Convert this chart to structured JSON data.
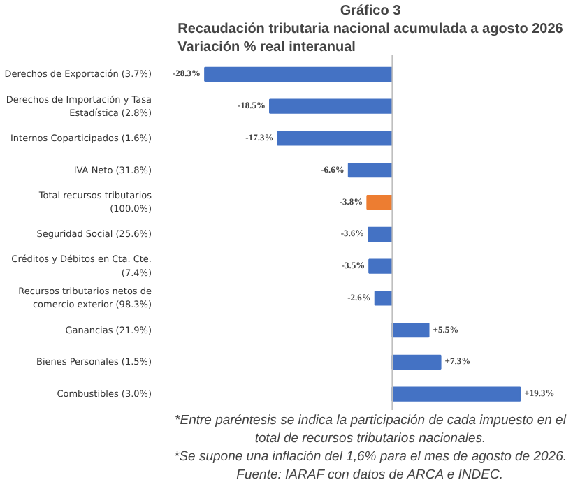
{
  "chart_data": {
    "type": "bar",
    "orientation": "horizontal",
    "title": "Gráfico 3",
    "subtitle": "Recaudación tributaria nacional acumulada a agosto 2026\nVariación % real interanual",
    "categories": [
      "Derechos de Exportación (3.7%)",
      "Derechos de Importación y Tasa Estadística (2.8%)",
      "Internos Coparticipados (1.6%)",
      "IVA Neto (31.8%)",
      "Total recursos tributarios (100.0%)",
      "Seguridad Social (25.6%)",
      "Créditos y Débitos en Cta. Cte. (7.4%)",
      "Recursos tributarios netos de comercio exterior (98.3%)",
      "Ganancias (21.9%)",
      "Bienes Personales (1.5%)",
      "Combustibles (3.0%)"
    ],
    "values": [
      -28.3,
      -18.5,
      -17.3,
      -6.6,
      -3.8,
      -3.6,
      -3.5,
      -2.6,
      5.5,
      7.3,
      19.3
    ],
    "colors": [
      "#4472c4",
      "#4472c4",
      "#4472c4",
      "#4472c4",
      "#ed7d31",
      "#4472c4",
      "#4472c4",
      "#4472c4",
      "#4472c4",
      "#4472c4",
      "#4472c4"
    ],
    "value_labels": [
      "-28.3%",
      "-18.5%",
      "-17.3%",
      "-6.6%",
      "-3.8%",
      "-3.6%",
      "-3.5%",
      "-2.6%",
      "+5.5%",
      "+7.3%",
      "+19.3%"
    ],
    "grid": false,
    "annotations": [
      "*Entre paréntesis se indica la participación de cada impuesto en el",
      "total de recursos tributarios nacionales.",
      "*Se supone una inflación del 1,6% para el mes de agosto de 2026.",
      "Fuente: IARAF con datos de ARCA e INDEC."
    ]
  }
}
